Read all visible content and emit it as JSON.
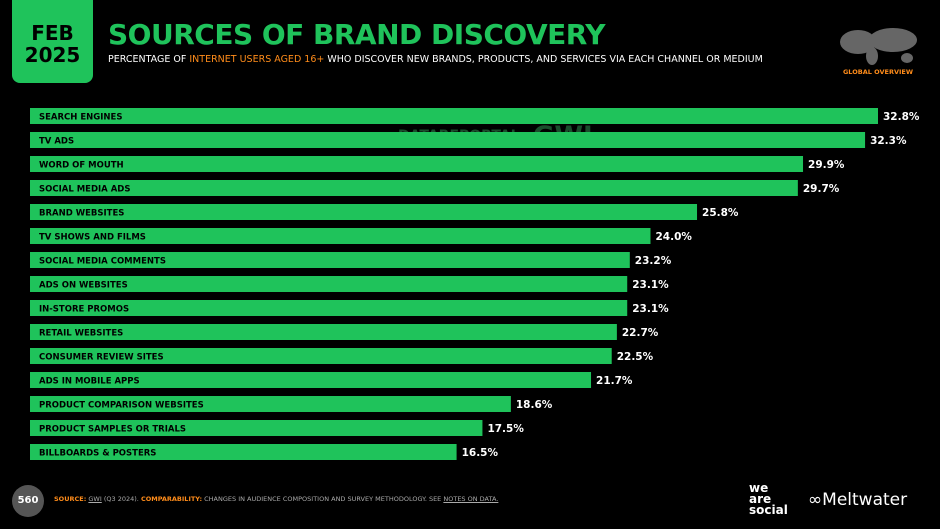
{
  "header": {
    "month": "FEB",
    "year": "2025",
    "region": "GLOBAL OVERVIEW",
    "watermark_a": "DATAREPORTAL",
    "watermark_b": "GWI."
  },
  "chart_data": {
    "type": "bar",
    "orientation": "horizontal",
    "title": "SOURCES OF BRAND DISCOVERY",
    "subtitle_prefix": "PERCENTAGE OF",
    "subtitle_highlight": "INTERNET USERS AGED 16+",
    "subtitle_suffix": "WHO DISCOVER NEW BRANDS, PRODUCTS, AND SERVICES VIA EACH CHANNEL OR MEDIUM",
    "color": "#1fc35b",
    "categories": [
      "SEARCH ENGINES",
      "TV ADS",
      "WORD OF MOUTH",
      "SOCIAL MEDIA ADS",
      "BRAND WEBSITES",
      "TV SHOWS AND FILMS",
      "SOCIAL MEDIA COMMENTS",
      "ADS ON WEBSITES",
      "IN-STORE PROMOS",
      "RETAIL WEBSITES",
      "CONSUMER REVIEW SITES",
      "ADS IN MOBILE APPS",
      "PRODUCT COMPARISON WEBSITES",
      "PRODUCT SAMPLES OR TRIALS",
      "BILLBOARDS & POSTERS"
    ],
    "values": [
      32.8,
      32.3,
      29.9,
      29.7,
      25.8,
      24.0,
      23.2,
      23.1,
      23.1,
      22.7,
      22.5,
      21.7,
      18.6,
      17.5,
      16.5
    ],
    "value_labels": [
      "32.8%",
      "32.3%",
      "29.9%",
      "29.7%",
      "25.8%",
      "24.0%",
      "23.2%",
      "23.1%",
      "23.1%",
      "22.7%",
      "22.5%",
      "21.7%",
      "18.6%",
      "17.5%",
      "16.5%"
    ]
  },
  "footer": {
    "page": "560",
    "source_label": "SOURCE:",
    "source": "GWI",
    "source_period": "(Q3 2024).",
    "comparability_label": "COMPARABILITY:",
    "comparability": "CHANGES IN AUDIENCE COMPOSITION AND SURVEY METHODOLOGY. SEE",
    "notes_link": "NOTES ON DATA.",
    "logo_a_1": "we",
    "logo_a_2": "are",
    "logo_a_3": "social",
    "logo_b": "Meltwater"
  }
}
